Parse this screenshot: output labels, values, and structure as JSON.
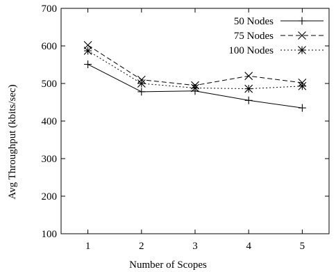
{
  "chart_data": {
    "type": "line",
    "title": "",
    "xlabel": "Number of Scopes",
    "ylabel": "Avg Throughput (kbits/sec)",
    "x": [
      1,
      2,
      3,
      4,
      5
    ],
    "xlim": [
      0.5,
      5.5
    ],
    "ylim": [
      100,
      700
    ],
    "x_ticks": [
      "1",
      "2",
      "3",
      "4",
      "5"
    ],
    "y_ticks": [
      "100",
      "200",
      "300",
      "400",
      "500",
      "600",
      "700"
    ],
    "legend_position": "top-right",
    "grid": false,
    "series": [
      {
        "name": "50 Nodes",
        "values": [
          551,
          478,
          480,
          455,
          435
        ],
        "marker": "plus",
        "line_style": "solid",
        "color": "#000000"
      },
      {
        "name": "75 Nodes",
        "values": [
          602,
          510,
          495,
          520,
          502
        ],
        "marker": "x",
        "line_style": "dashed",
        "color": "#000000"
      },
      {
        "name": "100 Nodes",
        "values": [
          587,
          500,
          488,
          486,
          493
        ],
        "marker": "star",
        "line_style": "dotted",
        "color": "#000000"
      }
    ]
  }
}
